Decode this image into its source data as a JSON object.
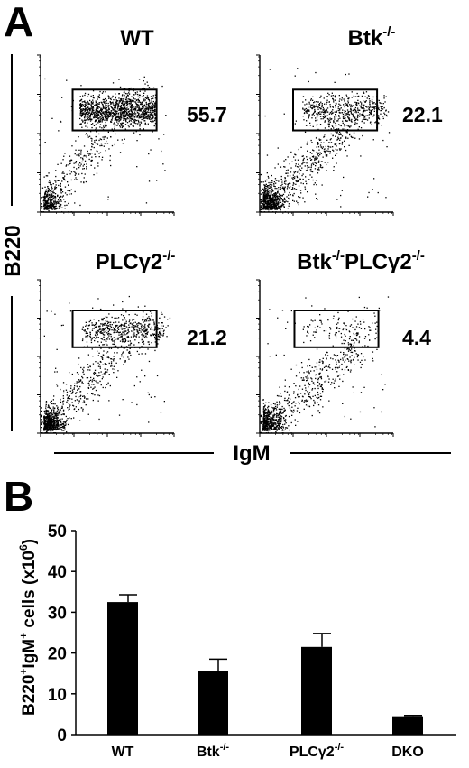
{
  "panel_a": {
    "letter": "A",
    "y_axis_label": "B220",
    "x_axis_label": "IgM",
    "plots": [
      {
        "title_base": "WT",
        "title_sup1": "",
        "title_mid": "",
        "title_sup2": "",
        "gate_percent": "55.7"
      },
      {
        "title_base": "Btk",
        "title_sup1": "-/-",
        "title_mid": "",
        "title_sup2": "",
        "gate_percent": "22.1"
      },
      {
        "title_base": "PLCγ2",
        "title_sup1": "-/-",
        "title_mid": "",
        "title_sup2": "",
        "gate_percent": "21.2"
      },
      {
        "title_base": "Btk",
        "title_sup1": "-/-",
        "title_mid": "PLCγ2",
        "title_sup2": "-/-",
        "gate_percent": "4.4"
      }
    ]
  },
  "panel_b": {
    "letter": "B",
    "y_axis_label": {
      "part1": "B220",
      "sup1": "+",
      "part2": "IgM",
      "sup2": "+",
      "part3": " cells (x10",
      "sup3": "6",
      "part4": ")"
    },
    "category_labels": [
      {
        "base": "WT",
        "sup": ""
      },
      {
        "base": "Btk",
        "sup": "-/-"
      },
      {
        "base": "PLCγ2",
        "sup": "-/-"
      },
      {
        "base": "DKO",
        "sup": ""
      }
    ]
  },
  "chart_data": [
    {
      "type": "scatter",
      "title": "",
      "xlabel": "IgM",
      "ylabel": "B220",
      "panels": [
        "WT",
        "Btk-/-",
        "PLCγ2-/-",
        "Btk-/-PLCγ2-/-"
      ],
      "gate_percentages": [
        55.7,
        22.1,
        21.2,
        4.4
      ]
    },
    {
      "type": "bar",
      "title": "",
      "categories": [
        "WT",
        "Btk-/-",
        "PLCγ2-/-",
        "DKO"
      ],
      "values": [
        32.5,
        15.5,
        21.5,
        4.5
      ],
      "errors": [
        1.8,
        3.0,
        3.3,
        0.2
      ],
      "xlabel": "",
      "ylabel": "B220+IgM+ cells (x10^6)",
      "ylim": [
        0,
        50
      ],
      "yticks": [
        0,
        10,
        20,
        30,
        40,
        50
      ],
      "bar_color": "#000000"
    }
  ]
}
